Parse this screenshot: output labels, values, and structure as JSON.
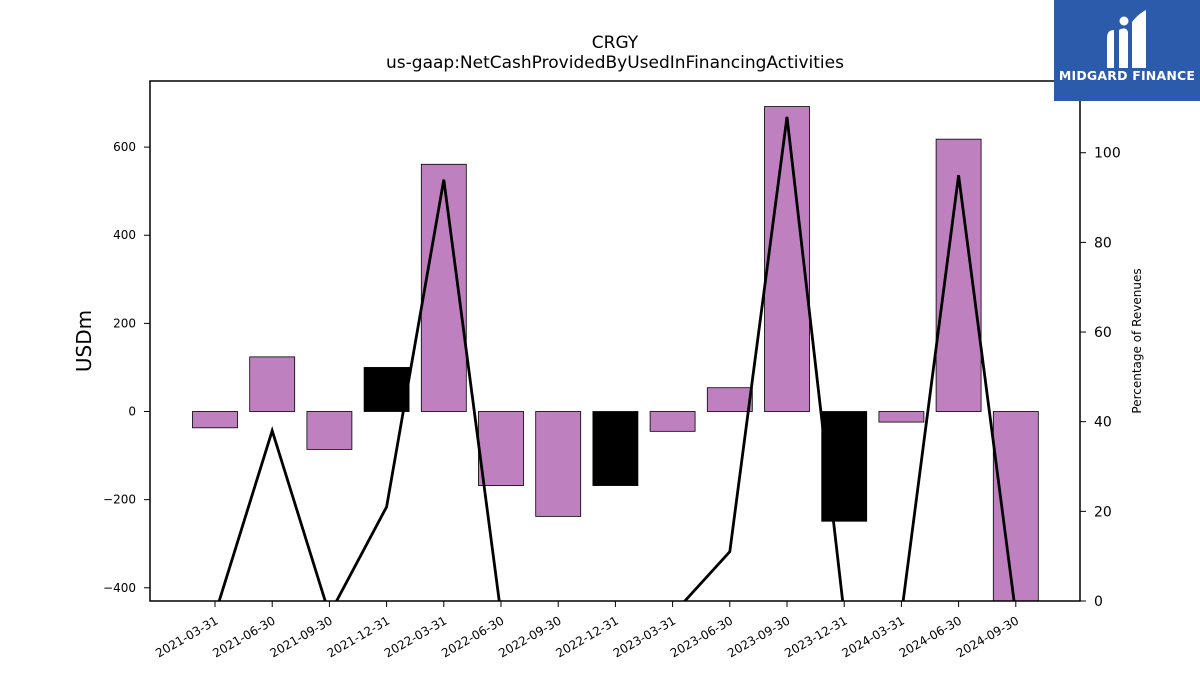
{
  "chart_data": {
    "type": "bar",
    "title": "CRGY",
    "subtitle": "us-gaap:NetCashProvidedByUsedInFinancingActivities",
    "ylabel": "USDm",
    "y2label": "Percentage of Revenues",
    "categories": [
      "2021-03-31",
      "2021-06-30",
      "2021-09-30",
      "2021-12-31",
      "2022-03-31",
      "2022-06-30",
      "2022-09-30",
      "2022-12-31",
      "2023-03-31",
      "2023-06-30",
      "2023-09-30",
      "2023-12-31",
      "2024-03-31",
      "2024-06-30",
      "2024-09-30"
    ],
    "series": [
      {
        "values": [
          -37,
          124,
          -86,
          100,
          561,
          -168,
          -238,
          -168,
          -45,
          54,
          692,
          -249,
          -24,
          618,
          -430
        ]
      },
      {
        "axis": "right",
        "values": [
          -3,
          38,
          -3,
          21,
          94,
          -3,
          -3,
          -3,
          -3,
          11,
          108,
          -3,
          -3,
          95,
          -3
        ]
      }
    ],
    "bar_colors": [
      "#bf80bf",
      "#bf80bf",
      "#bf80bf",
      "#000000",
      "#bf80bf",
      "#bf80bf",
      "#bf80bf",
      "#000000",
      "#bf80bf",
      "#bf80bf",
      "#bf80bf",
      "#000000",
      "#bf80bf",
      "#bf80bf",
      "#bf80bf"
    ],
    "y_ticks": [
      -400,
      -200,
      0,
      200,
      400,
      600
    ],
    "y2_ticks": [
      0,
      20,
      40,
      60,
      80,
      100
    ],
    "ylim": [
      -430,
      750
    ],
    "y2lim": [
      0,
      116
    ],
    "line_color": "#000000",
    "grid": false
  },
  "logo": {
    "text": "MIDGARD FINANCE",
    "background": "#2d5bab"
  }
}
